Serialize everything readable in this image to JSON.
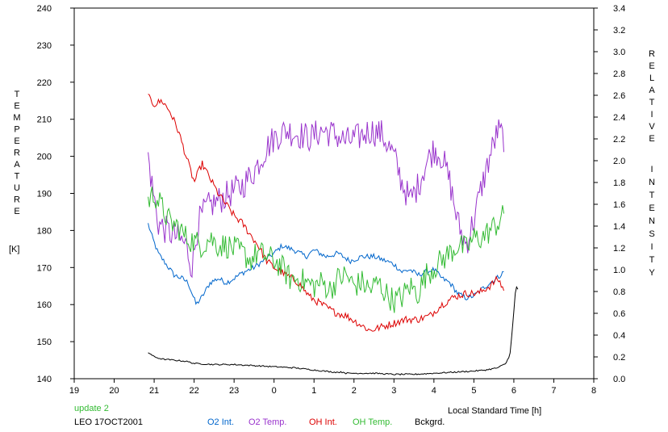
{
  "chart_data": {
    "type": "line",
    "xlabel": "Local Standard Time [h]",
    "xlim": [
      19,
      32
    ],
    "x_ticks": [
      {
        "value": 19,
        "label": "19"
      },
      {
        "value": 20,
        "label": "20"
      },
      {
        "value": 21,
        "label": "21"
      },
      {
        "value": 22,
        "label": "22"
      },
      {
        "value": 23,
        "label": "23"
      },
      {
        "value": 24,
        "label": "0"
      },
      {
        "value": 25,
        "label": "1"
      },
      {
        "value": 26,
        "label": "2"
      },
      {
        "value": 27,
        "label": "3"
      },
      {
        "value": 28,
        "label": "4"
      },
      {
        "value": 29,
        "label": "5"
      },
      {
        "value": 30,
        "label": "6"
      },
      {
        "value": 31,
        "label": "7"
      },
      {
        "value": 32,
        "label": "8"
      }
    ],
    "left_axis": {
      "label_letters": [
        "T",
        "E",
        "M",
        "P",
        "E",
        "R",
        "A",
        "T",
        "U",
        "R",
        "E"
      ],
      "unit": "[K]",
      "ylim": [
        140,
        240
      ],
      "ticks": [
        "140",
        "150",
        "160",
        "170",
        "180",
        "190",
        "200",
        "210",
        "220",
        "230",
        "240"
      ]
    },
    "right_axis": {
      "label_letters": [
        "R",
        "E",
        "L",
        "A",
        "T",
        "I",
        "V",
        "E"
      ],
      "label_letters_2": [
        "I",
        "N",
        "T",
        "E",
        "N",
        "S",
        "I",
        "T",
        "Y"
      ],
      "ylim": [
        0.0,
        3.4
      ],
      "ticks": [
        "0.0",
        "0.2",
        "0.4",
        "0.6",
        "0.8",
        "1.0",
        "1.2",
        "1.4",
        "1.6",
        "1.8",
        "2.0",
        "2.2",
        "2.4",
        "2.6",
        "2.8",
        "3.0",
        "3.2",
        "3.4"
      ]
    },
    "annotations": {
      "update": "update 2",
      "station": "LEO 17OCT2001"
    },
    "legend_position": "bottom",
    "series": [
      {
        "name": "O2 Int.",
        "color": "#0066cc",
        "axis": "right",
        "noise": 0.025,
        "x": [
          20.85,
          20.95,
          21.1,
          21.3,
          21.5,
          21.7,
          21.85,
          21.95,
          22.05,
          22.2,
          22.4,
          22.6,
          22.8,
          23.0,
          23.2,
          23.5,
          23.8,
          24.0,
          24.2,
          24.5,
          24.8,
          25.0,
          25.3,
          25.6,
          25.9,
          26.2,
          26.5,
          26.8,
          27.0,
          27.2,
          27.4,
          27.6,
          27.8,
          28.0,
          28.2,
          28.4,
          28.6,
          28.8,
          29.0,
          29.2,
          29.4,
          29.6,
          29.75
        ],
        "y": [
          1.42,
          1.3,
          1.15,
          1.05,
          0.95,
          0.92,
          0.88,
          0.78,
          0.68,
          0.75,
          0.88,
          0.92,
          0.88,
          0.92,
          0.97,
          1.02,
          1.1,
          1.15,
          1.22,
          1.18,
          1.12,
          1.18,
          1.12,
          1.15,
          1.08,
          1.12,
          1.12,
          1.08,
          1.05,
          0.98,
          1.0,
          0.95,
          0.98,
          1.0,
          0.92,
          0.88,
          0.78,
          0.74,
          0.76,
          0.82,
          0.88,
          0.93,
          0.98
        ]
      },
      {
        "name": "O2 Temp.",
        "color": "#9933cc",
        "axis": "left",
        "noise": 4.0,
        "x": [
          20.85,
          20.95,
          21.1,
          21.3,
          21.6,
          21.8,
          21.95,
          22.1,
          22.3,
          22.6,
          22.9,
          23.2,
          23.5,
          23.8,
          24.0,
          24.3,
          24.6,
          24.9,
          25.2,
          25.5,
          25.8,
          26.1,
          26.4,
          26.7,
          27.0,
          27.2,
          27.4,
          27.6,
          27.8,
          28.0,
          28.2,
          28.4,
          28.6,
          28.8,
          29.0,
          29.2,
          29.4,
          29.6,
          29.75
        ],
        "y": [
          200,
          192,
          182,
          180,
          178,
          176,
          170,
          182,
          186,
          188,
          190,
          192,
          196,
          202,
          205,
          207,
          206,
          205,
          207,
          206,
          204,
          205,
          207,
          206,
          200,
          193,
          188,
          192,
          198,
          202,
          200,
          193,
          182,
          176,
          183,
          192,
          200,
          207,
          205
        ]
      },
      {
        "name": "OH Int.",
        "color": "#dd0000",
        "axis": "left",
        "noise": 1.0,
        "x": [
          20.85,
          21.0,
          21.2,
          21.4,
          21.6,
          21.8,
          22.0,
          22.2,
          22.4,
          22.6,
          22.8,
          23.0,
          23.2,
          23.4,
          23.6,
          23.8,
          24.0,
          24.3,
          24.6,
          24.9,
          25.2,
          25.5,
          25.8,
          26.1,
          26.4,
          26.7,
          27.0,
          27.3,
          27.6,
          27.9,
          28.2,
          28.5,
          28.8,
          29.1,
          29.4,
          29.6,
          29.75
        ],
        "y": [
          216,
          214,
          215,
          212,
          207,
          200,
          193,
          198,
          194,
          190,
          187,
          184,
          182,
          179,
          176,
          172,
          170,
          168,
          166,
          162,
          160,
          158,
          157,
          155,
          153,
          154,
          155,
          156,
          156,
          157,
          160,
          162,
          163,
          163,
          165,
          167,
          164
        ]
      },
      {
        "name": "OH Temp.",
        "color": "#33bb33",
        "axis": "left",
        "noise": 3.5,
        "x": [
          20.85,
          21.0,
          21.2,
          21.4,
          21.6,
          21.8,
          22.0,
          22.2,
          22.4,
          22.6,
          22.8,
          23.0,
          23.2,
          23.4,
          23.6,
          23.8,
          24.0,
          24.2,
          24.4,
          24.6,
          24.8,
          25.0,
          25.2,
          25.4,
          25.6,
          25.8,
          26.0,
          26.2,
          26.4,
          26.6,
          26.8,
          27.0,
          27.2,
          27.4,
          27.6,
          27.8,
          28.0,
          28.2,
          28.4,
          28.6,
          28.8,
          29.0,
          29.2,
          29.4,
          29.6,
          29.75
        ],
        "y": [
          188,
          190,
          186,
          182,
          181,
          178,
          177,
          176,
          178,
          176,
          176,
          175,
          174,
          172,
          174,
          173,
          172,
          170,
          167,
          167,
          166,
          165,
          166,
          164,
          167,
          168,
          165,
          166,
          164,
          166,
          163,
          161,
          162,
          165,
          163,
          168,
          170,
          172,
          174,
          176,
          175,
          178,
          178,
          180,
          182,
          184
        ]
      },
      {
        "name": "Bckgrd.",
        "color": "#000000",
        "axis": "right",
        "noise": 0.006,
        "x": [
          20.85,
          20.9,
          21.0,
          21.2,
          21.5,
          21.8,
          22.0,
          22.5,
          23.0,
          23.5,
          24.0,
          24.5,
          25.0,
          25.5,
          25.75,
          25.8,
          26.0,
          26.5,
          27.0,
          27.5,
          28.0,
          28.5,
          29.0,
          29.3,
          29.6,
          29.8,
          29.9,
          29.95,
          30.0,
          30.05,
          30.1
        ],
        "y": [
          0.24,
          0.23,
          0.2,
          0.18,
          0.17,
          0.16,
          0.14,
          0.13,
          0.13,
          0.12,
          0.11,
          0.1,
          0.08,
          0.06,
          0.06,
          0.05,
          0.05,
          0.05,
          0.04,
          0.04,
          0.05,
          0.06,
          0.07,
          0.08,
          0.1,
          0.14,
          0.22,
          0.4,
          0.62,
          0.85,
          0.82
        ]
      }
    ]
  }
}
